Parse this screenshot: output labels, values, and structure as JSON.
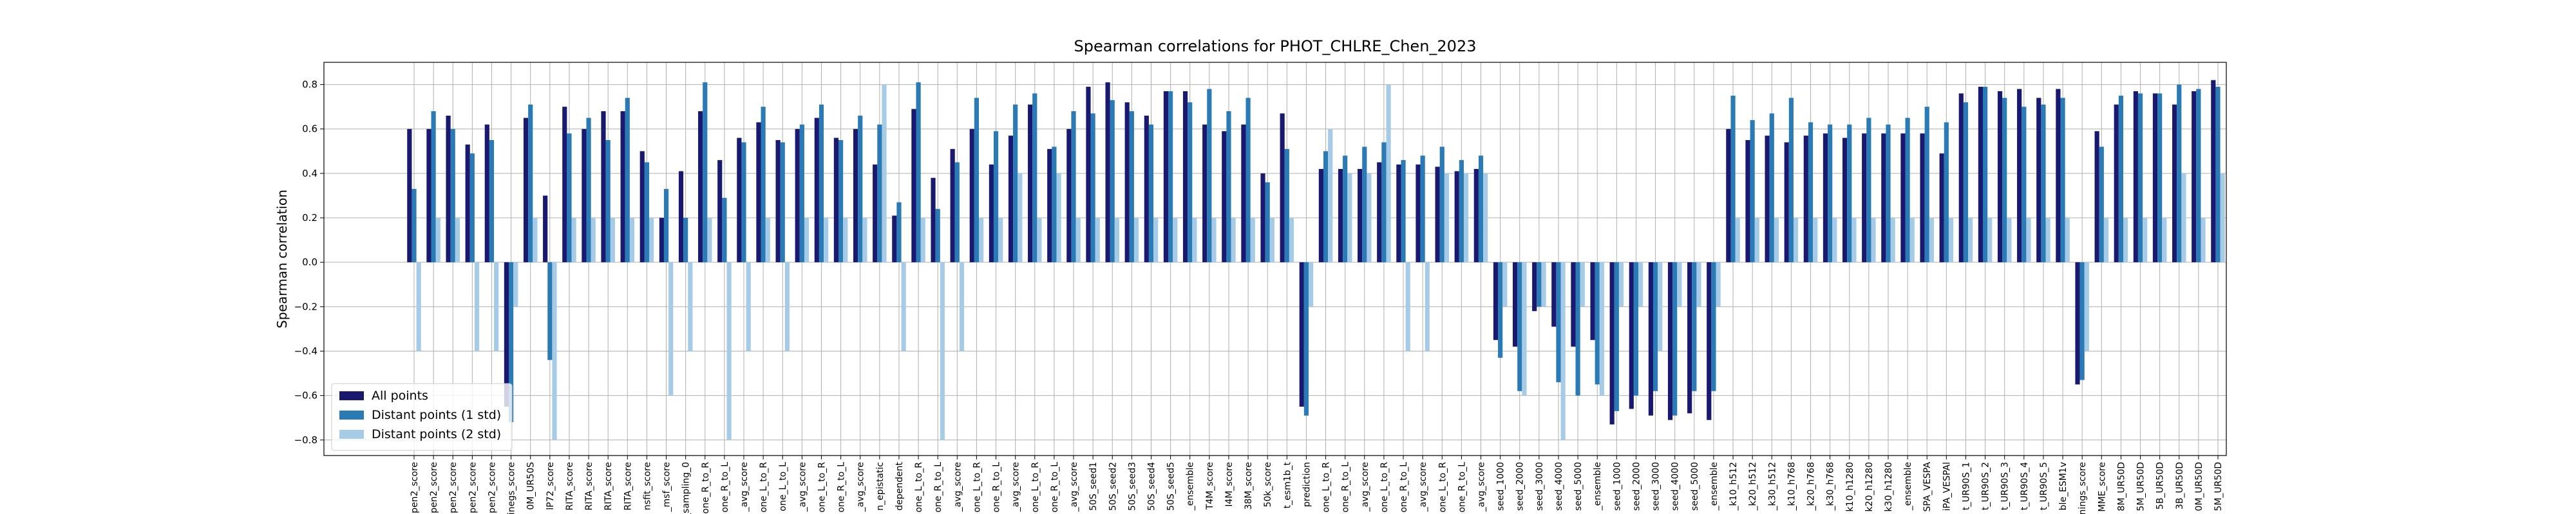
{
  "chart_data": {
    "type": "bar",
    "title": "Spearman correlations for PHOT_CHLRE_Chen_2023",
    "ylabel": "Spearman correlation",
    "categories": [
      "pen2_score",
      "pen2_score",
      "pen2_score",
      "pen2_score",
      "pen2_score",
      "inegs_score",
      "0M_UR50S",
      "lP72_score",
      "RITA_score",
      "RITA_score",
      "RITA_score",
      "RITA_score",
      "nsfit_score",
      "_msf_score",
      "t_sampling_0",
      "one_R_to_R",
      "one_R_to_L",
      "_avg_score",
      "one_L_to_R",
      "one_L_to_L",
      "_avg_score",
      "one_L_to_R",
      "one_R_to_L",
      "_avg_score",
      "n_epistatic",
      "dependent",
      "one_L_to_R",
      "one_R_to_L",
      "_avg_score",
      "one_L_to_R",
      "one_R_to_L",
      "_avg_score",
      "one_L_to_R",
      "one_R_to_L",
      "_avg_score",
      "50S_seed1",
      "50S_seed2",
      "50S_seed3",
      "50S_seed4",
      "50S_seed5",
      "_ensemble",
      "T4M_score",
      "I4M_score",
      "38M_score",
      "50k_score",
      "t_esm1b_t",
      "prediction",
      "one_L_to_R",
      "one_R_to_L",
      "_avg_score",
      "one_L_to_R",
      "one_R_to_L",
      "_avg_score",
      "one_L_to_R",
      "one_R_to_L",
      "_avg_score",
      "seed_1000",
      "seed_2000",
      "seed_3000",
      "seed_4000",
      "seed_5000",
      "_ensemble",
      "seed_1000",
      "seed_2000",
      "seed_3000",
      "seed_4000",
      "seed_5000",
      "_ensemble",
      "_k10_h512",
      "_k20_h512",
      "_k30_h512",
      "_k10_h768",
      "_k20_h768",
      "_k30_h768",
      "k10_h1280",
      "k20_h1280",
      "k30_h1280",
      "_ensemble",
      "SPA_VESPA",
      "iPA_VESPAl",
      "t_UR90S_1",
      "t_UR90S_2",
      "t_UR90S_3",
      "t_UR90S_4",
      "t_UR90S_5",
      "ble_ESM1v",
      "inings_score",
      "MME_score",
      "8M_UR50D",
      "5M_UR50D",
      "5B_UR50D",
      "3B_UR50D",
      "0M_UR50D",
      "5M_UR50D"
    ],
    "series": [
      {
        "name": "All points",
        "color": "#191970",
        "values": [
          0.6,
          0.6,
          0.66,
          0.53,
          0.62,
          -0.65,
          0.65,
          0.3,
          0.7,
          0.6,
          0.68,
          0.68,
          0.5,
          0.2,
          0.41,
          0.68,
          0.46,
          0.56,
          0.63,
          0.55,
          0.6,
          0.65,
          0.56,
          0.6,
          0.44,
          0.21,
          0.69,
          0.38,
          0.51,
          0.6,
          0.44,
          0.57,
          0.71,
          0.51,
          0.6,
          0.79,
          0.81,
          0.72,
          0.66,
          0.77,
          0.77,
          0.62,
          0.59,
          0.62,
          0.4,
          0.67,
          -0.65,
          0.42,
          0.42,
          0.42,
          0.45,
          0.44,
          0.44,
          0.43,
          0.41,
          0.42,
          -0.35,
          -0.38,
          -0.22,
          -0.29,
          -0.38,
          -0.35,
          -0.73,
          -0.66,
          -0.69,
          -0.71,
          -0.68,
          -0.71,
          0.6,
          0.55,
          0.57,
          0.54,
          0.57,
          0.58,
          0.56,
          0.58,
          0.58,
          0.58,
          0.58,
          0.49,
          0.76,
          0.79,
          0.77,
          0.78,
          0.74,
          0.78,
          -0.55,
          0.59,
          0.71,
          0.77,
          0.76,
          0.71,
          0.77,
          0.82
        ]
      },
      {
        "name": "Distant points (1 std)",
        "color": "#2a7ab5",
        "values": [
          0.33,
          0.68,
          0.6,
          0.49,
          0.55,
          -0.72,
          0.71,
          -0.44,
          0.58,
          0.65,
          0.55,
          0.74,
          0.45,
          0.33,
          0.2,
          0.81,
          0.29,
          0.54,
          0.7,
          0.54,
          0.62,
          0.71,
          0.55,
          0.66,
          0.62,
          0.27,
          0.81,
          0.24,
          0.45,
          0.74,
          0.59,
          0.71,
          0.76,
          0.52,
          0.68,
          0.67,
          0.73,
          0.68,
          0.62,
          0.77,
          0.72,
          0.78,
          0.68,
          0.74,
          0.36,
          0.51,
          -0.69,
          0.5,
          0.48,
          0.52,
          0.54,
          0.46,
          0.48,
          0.52,
          0.46,
          0.48,
          -0.43,
          -0.58,
          -0.2,
          -0.54,
          -0.6,
          -0.55,
          -0.67,
          -0.6,
          -0.58,
          -0.69,
          -0.58,
          -0.58,
          0.75,
          0.64,
          0.67,
          0.74,
          0.63,
          0.62,
          0.62,
          0.65,
          0.62,
          0.65,
          0.7,
          0.63,
          0.72,
          0.79,
          0.74,
          0.7,
          0.71,
          0.74,
          -0.53,
          0.52,
          0.75,
          0.76,
          0.76,
          0.8,
          0.78,
          0.79
        ]
      },
      {
        "name": "Distant points (2 std)",
        "color": "#a6cbe6",
        "values": [
          -0.4,
          0.2,
          0.2,
          -0.4,
          -0.4,
          -0.2,
          0.2,
          -0.8,
          0.2,
          0.2,
          0.2,
          0.2,
          0.2,
          -0.6,
          -0.4,
          0.2,
          -0.8,
          -0.4,
          0.2,
          -0.4,
          0.2,
          0.2,
          0.2,
          0.2,
          0.8,
          -0.4,
          0.2,
          -0.8,
          -0.4,
          0.2,
          0.2,
          0.4,
          0.2,
          0.4,
          0.2,
          0.2,
          0.2,
          0.2,
          0.2,
          0.2,
          0.2,
          0.2,
          0.2,
          0.2,
          0.2,
          0.2,
          -0.2,
          0.6,
          0.4,
          0.4,
          0.8,
          -0.4,
          -0.4,
          0.4,
          0.4,
          0.4,
          -0.2,
          -0.6,
          -0.2,
          -0.8,
          -0.2,
          -0.6,
          -0.2,
          -0.2,
          -0.4,
          -0.2,
          -0.2,
          -0.2,
          0.2,
          0.2,
          0.2,
          0.2,
          0.2,
          0.2,
          0.2,
          0.2,
          0.2,
          0.2,
          0.2,
          0.2,
          0.2,
          0.2,
          0.2,
          0.2,
          0.2,
          0.2,
          -0.4,
          0.2,
          0.2,
          0.2,
          0.2,
          0.4,
          0.2,
          0.4
        ]
      }
    ],
    "ylim": [
      -0.87,
      0.9
    ],
    "yticks": [
      {
        "value": -0.8,
        "label": "−0.8"
      },
      {
        "value": -0.6,
        "label": "−0.6"
      },
      {
        "value": -0.4,
        "label": "−0.4"
      },
      {
        "value": -0.2,
        "label": "−0.2"
      },
      {
        "value": 0,
        "label": "0.0"
      },
      0.2,
      0.4,
      0.6,
      0.8
    ],
    "grid": true,
    "legend": "lower left"
  }
}
